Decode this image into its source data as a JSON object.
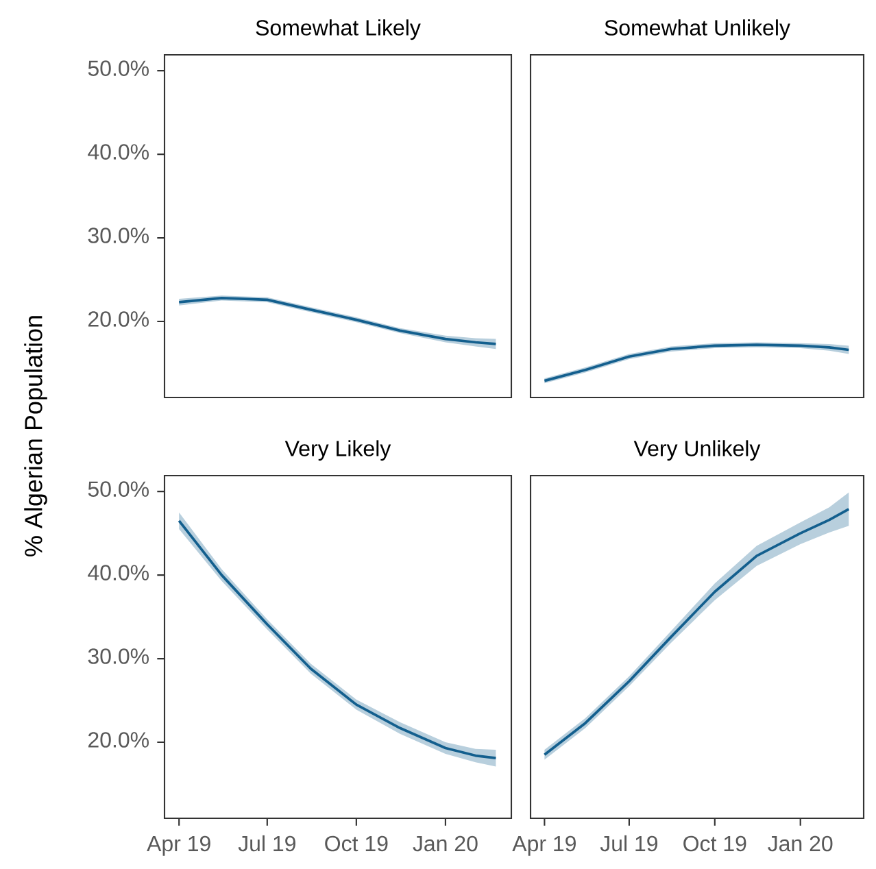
{
  "chart_data": [
    {
      "type": "line",
      "title": "Somewhat Likely",
      "ylabel": "% Algerian Population",
      "tick_labels": "y",
      "line_style": "solid",
      "x": [
        "2019-04-01",
        "2019-05-15",
        "2019-07-01",
        "2019-08-15",
        "2019-10-01",
        "2019-11-15",
        "2020-01-01",
        "2020-02-01",
        "2020-02-22"
      ],
      "series": [
        {
          "color": "#135f8e",
          "values": [
            22.3,
            22.8,
            22.6,
            21.4,
            20.2,
            18.9,
            17.9,
            17.5,
            17.3
          ],
          "lower": [
            21.9,
            22.5,
            22.3,
            21.1,
            19.9,
            18.6,
            17.5,
            17.0,
            16.7
          ],
          "upper": [
            22.7,
            23.1,
            22.9,
            21.7,
            20.5,
            19.2,
            18.3,
            18.0,
            17.9
          ]
        }
      ],
      "xlim": [
        "2019-03-17",
        "2020-03-09"
      ],
      "ylim": [
        10.9,
        51.9
      ],
      "xticks": [
        {
          "value": "2019-04-01",
          "label": null
        },
        {
          "value": "2019-07-01",
          "label": null
        },
        {
          "value": "2019-10-01",
          "label": null
        },
        {
          "value": "2020-01-01",
          "label": null
        }
      ],
      "yticks": [
        {
          "value": 20,
          "label": "20.0%"
        },
        {
          "value": 30,
          "label": "30.0%"
        },
        {
          "value": 40,
          "label": "40.0%"
        },
        {
          "value": 50,
          "label": "50.0%"
        }
      ]
    },
    {
      "type": "line",
      "title": "Somewhat Unlikely",
      "tick_labels": false,
      "line_style": "solid",
      "x": [
        "2019-04-01",
        "2019-05-15",
        "2019-07-01",
        "2019-08-15",
        "2019-10-01",
        "2019-11-15",
        "2020-01-01",
        "2020-02-01",
        "2020-02-22"
      ],
      "series": [
        {
          "color": "#135f8e",
          "values": [
            12.9,
            14.2,
            15.8,
            16.7,
            17.1,
            17.2,
            17.1,
            16.9,
            16.6
          ],
          "lower": [
            12.6,
            13.9,
            15.5,
            16.4,
            16.8,
            16.9,
            16.8,
            16.5,
            16.1
          ],
          "upper": [
            13.2,
            14.5,
            16.1,
            17.0,
            17.4,
            17.5,
            17.4,
            17.3,
            17.1
          ]
        }
      ],
      "xlim": [
        "2019-03-17",
        "2020-03-09"
      ],
      "ylim": [
        10.9,
        51.9
      ],
      "xticks": [
        {
          "value": "2019-04-01",
          "label": null
        },
        {
          "value": "2019-07-01",
          "label": null
        },
        {
          "value": "2019-10-01",
          "label": null
        },
        {
          "value": "2020-01-01",
          "label": null
        }
      ],
      "yticks": [
        {
          "value": 20,
          "label": null
        },
        {
          "value": 30,
          "label": null
        },
        {
          "value": 40,
          "label": null
        },
        {
          "value": 50,
          "label": null
        }
      ]
    },
    {
      "type": "line",
      "title": "Very Likely",
      "line_style": "solid",
      "x": [
        "2019-04-01",
        "2019-05-15",
        "2019-07-01",
        "2019-08-15",
        "2019-10-01",
        "2019-11-15",
        "2020-01-01",
        "2020-02-01",
        "2020-02-22"
      ],
      "series": [
        {
          "color": "#135f8e",
          "values": [
            46.5,
            40.0,
            34.1,
            28.8,
            24.5,
            21.7,
            19.3,
            18.4,
            18.1
          ],
          "lower": [
            45.5,
            39.3,
            33.5,
            28.2,
            23.9,
            21.0,
            18.6,
            17.6,
            17.1
          ],
          "upper": [
            47.5,
            40.7,
            34.7,
            29.4,
            25.1,
            22.4,
            20.0,
            19.2,
            19.1
          ]
        }
      ],
      "xlim": [
        "2019-03-17",
        "2020-03-09"
      ],
      "ylim": [
        10.9,
        51.9
      ],
      "xticks": [
        {
          "value": "2019-04-01",
          "label": "Apr 19"
        },
        {
          "value": "2019-07-01",
          "label": "Jul 19"
        },
        {
          "value": "2019-10-01",
          "label": "Oct 19"
        },
        {
          "value": "2020-01-01",
          "label": "Jan 20"
        }
      ],
      "yticks": [
        {
          "value": 20,
          "label": "20.0%"
        },
        {
          "value": 30,
          "label": "30.0%"
        },
        {
          "value": 40,
          "label": "40.0%"
        },
        {
          "value": 50,
          "label": "50.0%"
        }
      ]
    },
    {
      "type": "line",
      "title": "Very Unlikely",
      "tick_labels": "x",
      "line_style": "solid",
      "x": [
        "2019-04-01",
        "2019-05-15",
        "2019-07-01",
        "2019-08-15",
        "2019-10-01",
        "2019-11-15",
        "2020-01-01",
        "2020-02-01",
        "2020-02-22"
      ],
      "series": [
        {
          "color": "#135f8e",
          "values": [
            18.5,
            22.3,
            27.3,
            32.6,
            38.0,
            42.3,
            45.0,
            46.6,
            47.9
          ],
          "lower": [
            17.9,
            21.7,
            26.7,
            31.9,
            37.0,
            41.1,
            43.7,
            45.1,
            45.9
          ],
          "upper": [
            19.1,
            22.9,
            27.9,
            33.3,
            39.0,
            43.5,
            46.3,
            48.1,
            49.9
          ]
        }
      ],
      "xlim": [
        "2019-03-17",
        "2020-03-09"
      ],
      "ylim": [
        10.9,
        51.9
      ],
      "xticks": [
        {
          "value": "2019-04-01",
          "label": "Apr 19"
        },
        {
          "value": "2019-07-01",
          "label": "Jul 19"
        },
        {
          "value": "2019-10-01",
          "label": "Oct 19"
        },
        {
          "value": "2020-01-01",
          "label": "Jan 20"
        }
      ],
      "yticks": [
        {
          "value": 20,
          "label": null
        },
        {
          "value": 30,
          "label": null
        },
        {
          "value": 40,
          "label": null
        },
        {
          "value": 50,
          "label": null
        }
      ]
    }
  ]
}
